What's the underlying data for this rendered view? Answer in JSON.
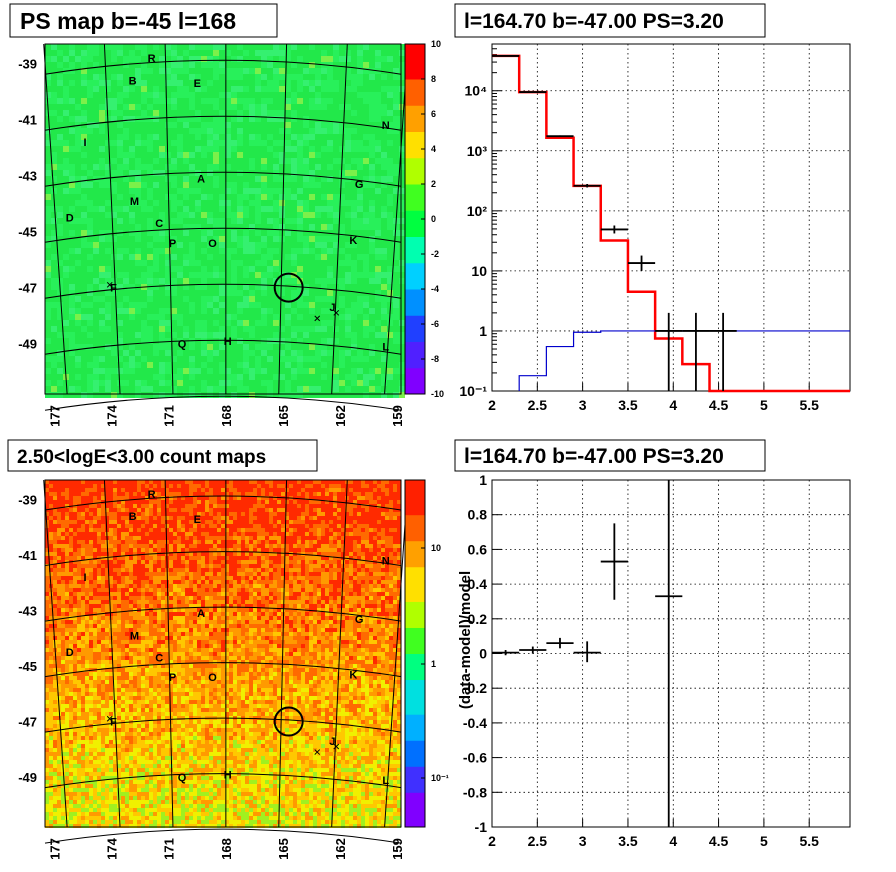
{
  "panels": {
    "tl_title": "PS map b=-45 l=168",
    "tr_title": "l=164.70 b=-47.00 PS=3.20",
    "bl_title": "2.50<logE<3.00 count maps",
    "br_title": "l=164.70 b=-47.00 PS=3.20",
    "br_ylabel": "(data-model)/model"
  },
  "maps": {
    "b_ticks": [
      "-39",
      "-41",
      "-43",
      "-45",
      "-47",
      "-49"
    ],
    "l_ticks": [
      "177",
      "174",
      "171",
      "168",
      "165",
      "162",
      "159"
    ],
    "source_labels": [
      {
        "t": "R",
        "l": 171.9,
        "b": -38.8
      },
      {
        "t": "B",
        "l": 172.9,
        "b": -39.6
      },
      {
        "t": "E",
        "l": 169.5,
        "b": -39.7
      },
      {
        "t": "N",
        "l": 159.6,
        "b": -41.2
      },
      {
        "t": "I",
        "l": 175.4,
        "b": -41.8
      },
      {
        "t": "A",
        "l": 169.3,
        "b": -43.1
      },
      {
        "t": "G",
        "l": 161.0,
        "b": -43.3
      },
      {
        "t": "M",
        "l": 172.8,
        "b": -43.9
      },
      {
        "t": "D",
        "l": 176.2,
        "b": -44.5
      },
      {
        "t": "C",
        "l": 171.5,
        "b": -44.7
      },
      {
        "t": "P",
        "l": 170.8,
        "b": -45.4
      },
      {
        "t": "O",
        "l": 168.7,
        "b": -45.4
      },
      {
        "t": "K",
        "l": 161.3,
        "b": -45.3
      },
      {
        "t": "F",
        "l": 173.9,
        "b": -47.0
      },
      {
        "t": "J",
        "l": 162.4,
        "b": -47.7
      },
      {
        "t": "Q",
        "l": 170.3,
        "b": -49.0
      },
      {
        "t": "H",
        "l": 167.9,
        "b": -48.9
      },
      {
        "t": "L",
        "l": 159.6,
        "b": -49.1
      }
    ],
    "ps_colorbar": {
      "ticks": [
        "10",
        "8",
        "6",
        "4",
        "2",
        "0",
        "-2",
        "-4",
        "-6",
        "-8",
        "-10"
      ],
      "range": [
        -10,
        10
      ]
    },
    "count_colorbar": {
      "ticks": [
        "10",
        "1",
        "10⁻¹"
      ]
    }
  },
  "chart_data": [
    {
      "type": "heatmap",
      "title": "PS map b=-45 l=168",
      "xlim": [
        177.5,
        158.8
      ],
      "ylim": [
        -50.8,
        -38.3
      ],
      "z_range": [
        -10,
        10
      ],
      "dominant_value": 0,
      "colors": [
        "#7a00ff",
        "#0040ff",
        "#00c8ff",
        "#00ff60",
        "#ffff00",
        "#ff8000",
        "#ff0000"
      ],
      "source_circle": {
        "l": 164.7,
        "b": -47.0
      }
    },
    {
      "type": "line",
      "title": "l=164.70 b=-47.00 PS=3.20",
      "log_y": true,
      "xlim": [
        2,
        5.95
      ],
      "ylim": [
        0.1,
        60000
      ],
      "x_ticks": [
        "2",
        "2.5",
        "3",
        "3.5",
        "4",
        "4.5",
        "5",
        "5.5"
      ],
      "y_ticks": [
        "10⁻¹",
        "1",
        "10",
        "10²",
        "10³",
        "10⁴"
      ],
      "series": [
        {
          "color": "#ff0000",
          "bins": [
            [
              2.0,
              2.3,
              38000
            ],
            [
              2.3,
              2.6,
              9500
            ],
            [
              2.6,
              2.9,
              1650
            ],
            [
              2.9,
              3.2,
              260
            ],
            [
              3.2,
              3.5,
              32
            ],
            [
              3.5,
              3.8,
              4.5
            ],
            [
              3.8,
              4.1,
              0.75
            ],
            [
              4.1,
              4.4,
              0.28
            ],
            [
              4.4,
              4.7,
              0.1
            ],
            [
              4.7,
              5.95,
              0.1
            ]
          ]
        },
        {
          "color": "#0000cc",
          "bins": [
            [
              2.3,
              2.6,
              0.18
            ],
            [
              2.6,
              2.9,
              0.55
            ],
            [
              2.9,
              3.2,
              0.95
            ],
            [
              3.2,
              3.5,
              1.0
            ],
            [
              3.5,
              5.95,
              1.0
            ]
          ]
        }
      ],
      "points": [
        {
          "x": 2.15,
          "y": 38000,
          "xerr": 0.15,
          "ylo": 37500,
          "yhi": 38500
        },
        {
          "x": 2.45,
          "y": 9500,
          "xerr": 0.15,
          "ylo": 9350,
          "yhi": 9650
        },
        {
          "x": 2.75,
          "y": 1750,
          "xerr": 0.15,
          "ylo": 1700,
          "yhi": 1800
        },
        {
          "x": 3.05,
          "y": 262,
          "xerr": 0.15,
          "ylo": 245,
          "yhi": 280
        },
        {
          "x": 3.35,
          "y": 49,
          "xerr": 0.15,
          "ylo": 42,
          "yhi": 57
        },
        {
          "x": 3.65,
          "y": 13.5,
          "xerr": 0.15,
          "ylo": 10,
          "yhi": 18
        },
        {
          "x": 3.95,
          "y": 1,
          "xerr": 0.15,
          "ylo": 0.1,
          "yhi": 2.0
        },
        {
          "x": 4.25,
          "y": 1,
          "xerr": 0.15,
          "ylo": 0.1,
          "yhi": 2.0
        },
        {
          "x": 4.55,
          "y": 1,
          "xerr": 0.15,
          "ylo": 0.1,
          "yhi": 2.0
        }
      ]
    },
    {
      "type": "heatmap",
      "title": "2.50<logE<3.00 count maps",
      "xlim": [
        177.5,
        158.8
      ],
      "ylim": [
        -50.8,
        -38.3
      ],
      "scale": "log",
      "colors": [
        "#7a00ff",
        "#0060ff",
        "#00e0ff",
        "#00ff60",
        "#ffff00",
        "#ff8000",
        "#ff0000"
      ],
      "source_circle": {
        "l": 164.7,
        "b": -47.0
      }
    },
    {
      "type": "scatter",
      "title": "l=164.70 b=-47.00 PS=3.20",
      "xlabel": "",
      "ylabel": "(data-model)/model",
      "xlim": [
        2,
        5.95
      ],
      "ylim": [
        -1,
        1
      ],
      "x_ticks": [
        "2",
        "2.5",
        "3",
        "3.5",
        "4",
        "4.5",
        "5",
        "5.5"
      ],
      "y_ticks": [
        "-1",
        "-0.8",
        "-0.6",
        "-0.4",
        "-0.2",
        "0",
        "0.2",
        "0.4",
        "0.6",
        "0.8",
        "1"
      ],
      "points": [
        {
          "x": 2.15,
          "y": 0.005,
          "xerr": 0.15,
          "ylo": -0.01,
          "yhi": 0.02
        },
        {
          "x": 2.45,
          "y": 0.02,
          "xerr": 0.15,
          "ylo": 0.0,
          "yhi": 0.04
        },
        {
          "x": 2.75,
          "y": 0.06,
          "xerr": 0.15,
          "ylo": 0.03,
          "yhi": 0.09
        },
        {
          "x": 3.05,
          "y": 0.005,
          "xerr": 0.15,
          "ylo": -0.05,
          "yhi": 0.07
        },
        {
          "x": 3.35,
          "y": 0.53,
          "xerr": 0.15,
          "ylo": 0.31,
          "yhi": 0.75
        },
        {
          "x": 3.95,
          "y": 0.33,
          "xerr": 0.15,
          "ylo": -1.0,
          "yhi": 1.0
        }
      ]
    }
  ]
}
